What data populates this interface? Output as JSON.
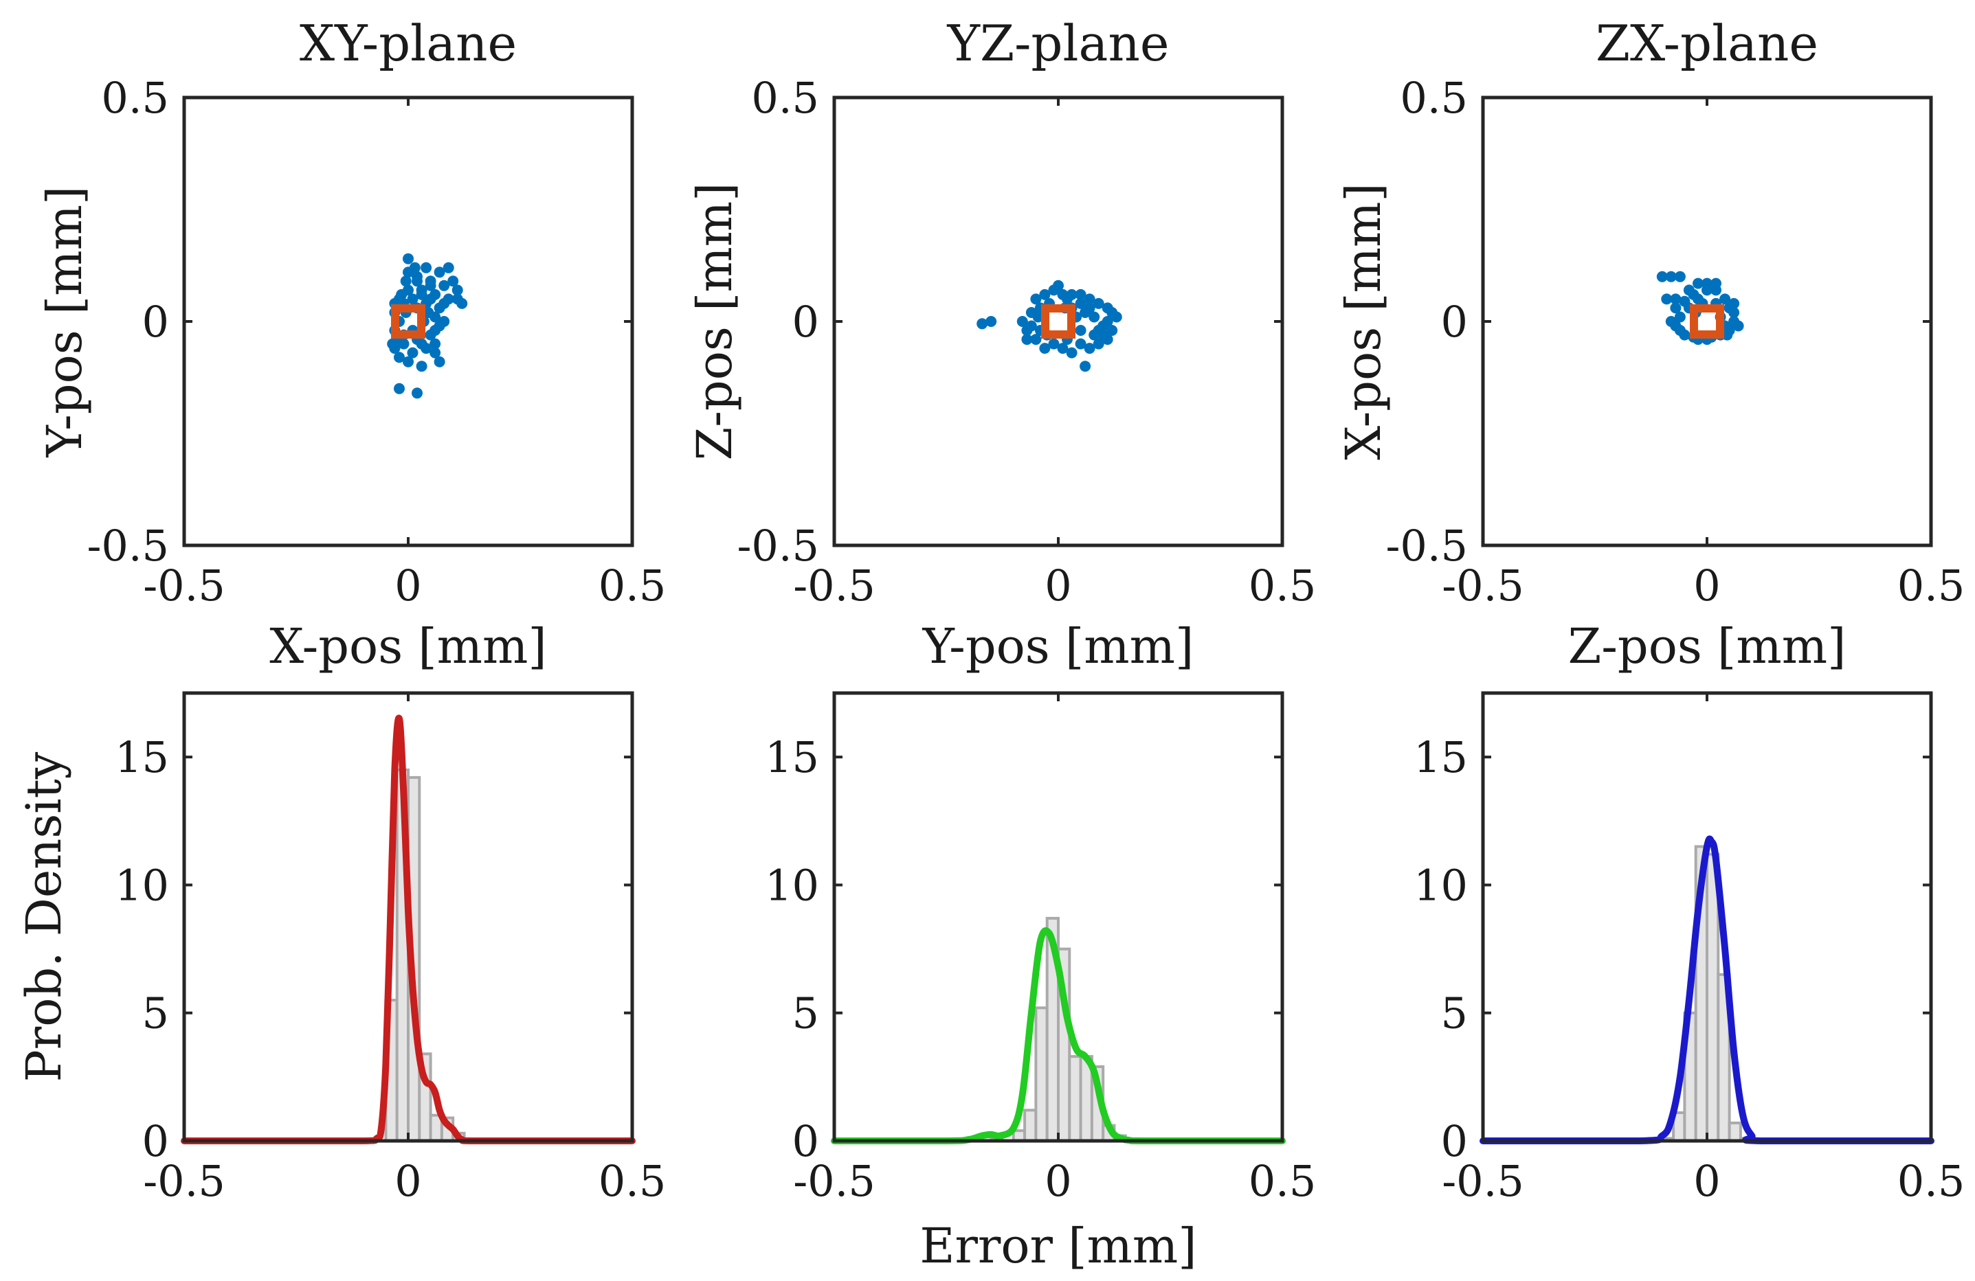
{
  "figure": {
    "xlabel_bottom": "Error [mm]",
    "ylabel_bottom": "Prob. Density"
  },
  "colors": {
    "scatter": "#0072BD",
    "marker": "#D95319",
    "x_curve": "#C81E1E",
    "y_curve": "#22CC22",
    "z_curve": "#1A1ACC",
    "hist_fill": "#E4E4E4",
    "hist_edge": "#AAAAAA",
    "axes": "#262626"
  },
  "chart_data": [
    {
      "type": "scatter",
      "title": "XY-plane",
      "xlabel": "X-pos [mm]",
      "ylabel": "Y-pos [mm]",
      "xlim": [
        -0.5,
        0.5
      ],
      "ylim": [
        -0.5,
        0.5
      ],
      "xticks": [
        -0.5,
        0,
        0.5
      ],
      "xtick_labels": [
        "-0.5",
        "0",
        "0.5"
      ],
      "yticks": [
        -0.5,
        0,
        0.5
      ],
      "ytick_labels": [
        "-0.5",
        "0",
        "0.5"
      ],
      "reference_point": [
        0,
        0
      ],
      "points": [
        [
          0.0,
          0.14
        ],
        [
          0.015,
          0.12
        ],
        [
          0.04,
          0.12
        ],
        [
          0.07,
          0.11
        ],
        [
          0.09,
          0.12
        ],
        [
          0.1,
          0.09
        ],
        [
          0.11,
          0.07
        ],
        [
          0.11,
          0.05
        ],
        [
          0.12,
          0.04
        ],
        [
          -0.005,
          0.09
        ],
        [
          0.02,
          0.1
        ],
        [
          0.05,
          0.09
        ],
        [
          0.08,
          0.08
        ],
        [
          0.06,
          0.06
        ],
        [
          0.09,
          0.05
        ],
        [
          0.03,
          0.07
        ],
        [
          -0.015,
          0.06
        ],
        [
          -0.01,
          0.04
        ],
        [
          0.01,
          0.05
        ],
        [
          0.04,
          0.04
        ],
        [
          0.07,
          0.03
        ],
        [
          -0.03,
          0.02
        ],
        [
          -0.02,
          0.0
        ],
        [
          -0.03,
          -0.02
        ],
        [
          -0.025,
          -0.04
        ],
        [
          -0.03,
          -0.06
        ],
        [
          -0.01,
          -0.05
        ],
        [
          0.02,
          -0.04
        ],
        [
          0.05,
          -0.03
        ],
        [
          0.07,
          -0.01
        ],
        [
          0.06,
          -0.05
        ],
        [
          0.04,
          -0.06
        ],
        [
          0.01,
          -0.07
        ],
        [
          -0.02,
          -0.08
        ],
        [
          0.0,
          -0.09
        ],
        [
          0.03,
          -0.1
        ],
        [
          0.07,
          -0.09
        ],
        [
          -0.02,
          -0.15
        ],
        [
          0.02,
          -0.16
        ],
        [
          0.06,
          0.01
        ],
        [
          0.08,
          0.0
        ],
        [
          0.035,
          0.0
        ],
        [
          -0.005,
          0.02
        ],
        [
          0.01,
          -0.02
        ],
        [
          0.045,
          0.02
        ],
        [
          0.02,
          0.03
        ],
        [
          -0.02,
          0.05
        ],
        [
          0.0,
          0.07
        ],
        [
          0.05,
          0.05
        ],
        [
          0.03,
          -0.05
        ],
        [
          0.06,
          -0.02
        ],
        [
          -0.035,
          -0.05
        ],
        [
          -0.03,
          0.04
        ],
        [
          0.08,
          0.04
        ],
        [
          0.05,
          0.08
        ],
        [
          0.02,
          0.09
        ],
        [
          -0.01,
          -0.03
        ],
        [
          0.03,
          0.06
        ],
        [
          0.0,
          0.11
        ],
        [
          0.06,
          -0.07
        ]
      ]
    },
    {
      "type": "scatter",
      "title": "YZ-plane",
      "xlabel": "Y-pos [mm]",
      "ylabel": "Z-pos [mm]",
      "xlim": [
        -0.5,
        0.5
      ],
      "ylim": [
        -0.5,
        0.5
      ],
      "xticks": [
        -0.5,
        0,
        0.5
      ],
      "xtick_labels": [
        "-0.5",
        "0",
        "0.5"
      ],
      "yticks": [
        -0.5,
        0,
        0.5
      ],
      "ytick_labels": [
        "-0.5",
        "0",
        "0.5"
      ],
      "reference_point": [
        0,
        0
      ],
      "points": [
        [
          -0.15,
          0.0
        ],
        [
          -0.17,
          -0.005
        ],
        [
          -0.08,
          0.0
        ],
        [
          -0.07,
          -0.02
        ],
        [
          -0.06,
          0.02
        ],
        [
          -0.05,
          0.05
        ],
        [
          -0.03,
          0.06
        ],
        [
          -0.01,
          0.07
        ],
        [
          0.01,
          0.06
        ],
        [
          0.03,
          0.06
        ],
        [
          0.05,
          0.04
        ],
        [
          0.07,
          0.05
        ],
        [
          0.09,
          0.04
        ],
        [
          0.11,
          0.03
        ],
        [
          0.12,
          0.02
        ],
        [
          0.11,
          0.0
        ],
        [
          0.12,
          -0.02
        ],
        [
          0.1,
          -0.03
        ],
        [
          0.13,
          0.01
        ],
        [
          0.09,
          -0.05
        ],
        [
          0.07,
          -0.06
        ],
        [
          0.05,
          -0.05
        ],
        [
          0.03,
          -0.07
        ],
        [
          0.01,
          -0.06
        ],
        [
          -0.01,
          -0.05
        ],
        [
          -0.03,
          -0.06
        ],
        [
          -0.05,
          -0.04
        ],
        [
          -0.07,
          -0.04
        ],
        [
          -0.04,
          0.03
        ],
        [
          -0.02,
          0.04
        ],
        [
          0.02,
          0.05
        ],
        [
          0.06,
          0.02
        ],
        [
          0.08,
          0.01
        ],
        [
          0.1,
          -0.01
        ],
        [
          0.08,
          -0.03
        ],
        [
          0.05,
          -0.02
        ],
        [
          0.02,
          -0.04
        ],
        [
          0.06,
          -0.1
        ],
        [
          -0.06,
          -0.01
        ],
        [
          -0.045,
          0.01
        ],
        [
          0.04,
          0.01
        ],
        [
          0.015,
          0.03
        ],
        [
          -0.025,
          -0.03
        ],
        [
          0.07,
          0.03
        ],
        [
          0.03,
          0.03
        ],
        [
          0.09,
          -0.02
        ],
        [
          0.11,
          -0.04
        ],
        [
          -0.04,
          -0.02
        ],
        [
          0.0,
          0.08
        ],
        [
          0.05,
          0.06
        ]
      ]
    },
    {
      "type": "scatter",
      "title": "ZX-plane",
      "xlabel": "Z-pos [mm]",
      "ylabel": "X-pos [mm]",
      "xlim": [
        -0.5,
        0.5
      ],
      "ylim": [
        -0.5,
        0.5
      ],
      "xticks": [
        -0.5,
        0,
        0.5
      ],
      "xtick_labels": [
        "-0.5",
        "0",
        "0.5"
      ],
      "yticks": [
        -0.5,
        0,
        0.5
      ],
      "ytick_labels": [
        "-0.5",
        "0",
        "0.5"
      ],
      "reference_point": [
        0,
        0
      ],
      "points": [
        [
          -0.1,
          0.1
        ],
        [
          -0.08,
          0.1
        ],
        [
          -0.06,
          0.1
        ],
        [
          -0.02,
          0.085
        ],
        [
          0.0,
          0.085
        ],
        [
          0.02,
          0.085
        ],
        [
          -0.03,
          0.06
        ],
        [
          0.0,
          0.07
        ],
        [
          0.02,
          0.07
        ],
        [
          0.04,
          0.05
        ],
        [
          -0.07,
          0.05
        ],
        [
          -0.09,
          0.05
        ],
        [
          -0.07,
          0.03
        ],
        [
          -0.06,
          0.01
        ],
        [
          -0.07,
          -0.01
        ],
        [
          -0.05,
          -0.03
        ],
        [
          -0.06,
          -0.02
        ],
        [
          -0.02,
          -0.04
        ],
        [
          0.0,
          -0.04
        ],
        [
          0.03,
          -0.03
        ],
        [
          0.05,
          -0.02
        ],
        [
          0.06,
          0.0
        ],
        [
          0.06,
          0.02
        ],
        [
          0.05,
          0.03
        ],
        [
          0.04,
          -0.01
        ],
        [
          -0.04,
          0.03
        ],
        [
          -0.02,
          0.05
        ],
        [
          0.03,
          0.01
        ],
        [
          -0.01,
          0.04
        ],
        [
          0.055,
          0.035
        ],
        [
          0.045,
          -0.03
        ],
        [
          -0.08,
          0.0
        ],
        [
          -0.03,
          -0.035
        ],
        [
          0.02,
          0.04
        ],
        [
          -0.05,
          0.045
        ],
        [
          0.01,
          -0.035
        ],
        [
          0.06,
          0.04
        ],
        [
          -0.04,
          0.07
        ],
        [
          0.07,
          -0.01
        ],
        [
          -0.025,
          0.02
        ]
      ]
    },
    {
      "type": "bar+line",
      "series_name": "X",
      "ylabel": "Prob. Density",
      "xlabel": "",
      "xlim": [
        -0.5,
        0.5
      ],
      "ylim": [
        0,
        17.5
      ],
      "xticks": [
        -0.5,
        0,
        0.5
      ],
      "xtick_labels": [
        "-0.5",
        "0",
        "0.5"
      ],
      "yticks": [
        0,
        5,
        10,
        15
      ],
      "ytick_labels": [
        "0",
        "5",
        "10",
        "15"
      ],
      "bin_width": 0.025,
      "histogram": {
        "bin_edges": [
          -0.05,
          -0.025,
          0.0,
          0.025,
          0.05,
          0.075,
          0.1,
          0.125
        ],
        "values": [
          5.5,
          14.5,
          14.2,
          3.4,
          1.0,
          0.9,
          0.3
        ]
      },
      "curve": {
        "x": [
          -0.5,
          -0.3,
          -0.1,
          -0.07,
          -0.06,
          -0.05,
          -0.04,
          -0.03,
          -0.02,
          -0.01,
          0.0,
          0.01,
          0.02,
          0.03,
          0.04,
          0.05,
          0.06,
          0.07,
          0.08,
          0.09,
          0.1,
          0.11,
          0.12,
          0.14,
          0.3,
          0.5
        ],
        "y": [
          0,
          0,
          0,
          0.1,
          0.5,
          3.0,
          8.5,
          14.5,
          16.5,
          13.5,
          9.0,
          6.0,
          4.0,
          2.8,
          2.3,
          2.2,
          1.9,
          1.2,
          0.8,
          0.6,
          0.45,
          0.2,
          0.05,
          0,
          0,
          0
        ]
      }
    },
    {
      "type": "bar+line",
      "series_name": "Y",
      "ylabel": "",
      "xlabel": "Error [mm]",
      "xlim": [
        -0.5,
        0.5
      ],
      "ylim": [
        0,
        17.5
      ],
      "xticks": [
        -0.5,
        0,
        0.5
      ],
      "xtick_labels": [
        "-0.5",
        "0",
        "0.5"
      ],
      "yticks": [
        0,
        5,
        10,
        15
      ],
      "ytick_labels": [
        "0",
        "5",
        "10",
        "15"
      ],
      "bin_width": 0.025,
      "histogram": {
        "bin_edges": [
          -0.175,
          -0.15,
          -0.125,
          -0.1,
          -0.075,
          -0.05,
          -0.025,
          0.0,
          0.025,
          0.05,
          0.075,
          0.1,
          0.125,
          0.15
        ],
        "values": [
          0.2,
          0.1,
          0.0,
          0.4,
          1.2,
          5.2,
          8.7,
          7.5,
          3.3,
          3.3,
          2.9,
          0.6,
          0.2
        ]
      },
      "curve": {
        "x": [
          -0.5,
          -0.25,
          -0.2,
          -0.17,
          -0.15,
          -0.13,
          -0.1,
          -0.08,
          -0.06,
          -0.04,
          -0.02,
          0.0,
          0.02,
          0.04,
          0.06,
          0.08,
          0.1,
          0.12,
          0.14,
          0.16,
          0.2,
          0.5
        ],
        "y": [
          0,
          0,
          0.05,
          0.2,
          0.25,
          0.2,
          0.5,
          1.8,
          5.0,
          7.8,
          8.1,
          6.8,
          4.8,
          3.6,
          3.3,
          2.7,
          1.2,
          0.35,
          0.1,
          0.02,
          0,
          0
        ]
      }
    },
    {
      "type": "bar+line",
      "series_name": "Z",
      "ylabel": "",
      "xlabel": "",
      "xlim": [
        -0.5,
        0.5
      ],
      "ylim": [
        0,
        17.5
      ],
      "xticks": [
        -0.5,
        0,
        0.5
      ],
      "xtick_labels": [
        "-0.5",
        "0",
        "0.5"
      ],
      "yticks": [
        0,
        5,
        10,
        15
      ],
      "ytick_labels": [
        "0",
        "5",
        "10",
        "15"
      ],
      "bin_width": 0.025,
      "histogram": {
        "bin_edges": [
          -0.1,
          -0.075,
          -0.05,
          -0.025,
          0.0,
          0.025,
          0.05,
          0.075,
          0.1
        ],
        "values": [
          0.1,
          1.1,
          5.0,
          11.5,
          11.2,
          6.5,
          0.7,
          0.1
        ]
      },
      "curve": {
        "x": [
          -0.5,
          -0.15,
          -0.1,
          -0.08,
          -0.06,
          -0.04,
          -0.02,
          0.0,
          0.01,
          0.02,
          0.04,
          0.06,
          0.08,
          0.1,
          0.12,
          0.5
        ],
        "y": [
          0,
          0,
          0.2,
          0.8,
          2.5,
          5.5,
          9.0,
          11.5,
          11.7,
          11.0,
          7.5,
          3.5,
          1.0,
          0.2,
          0,
          0
        ]
      }
    }
  ]
}
